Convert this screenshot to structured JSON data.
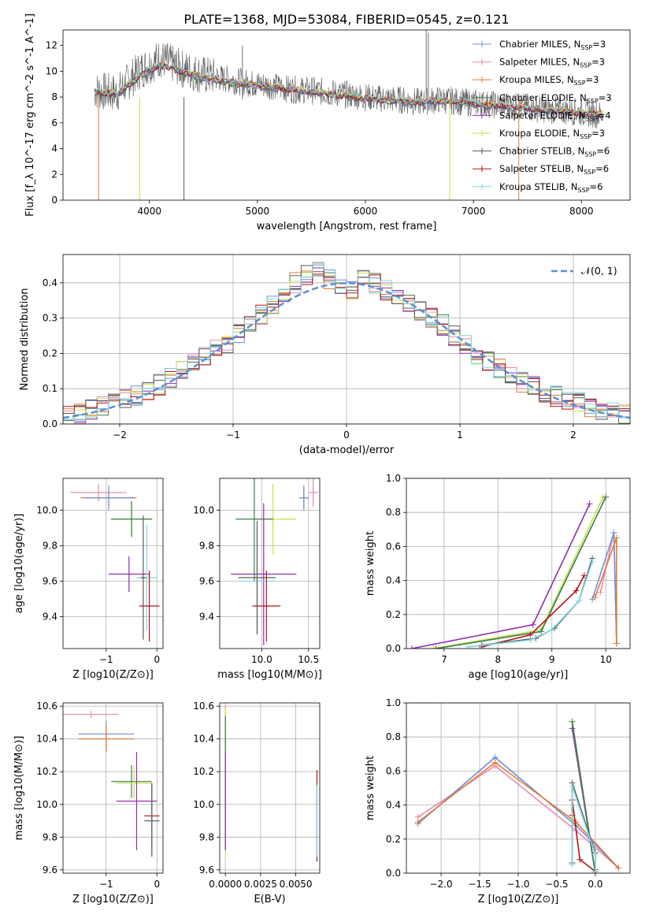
{
  "figure_title": "PLATE=1368, MJD=53084, FIBERID=0545, z=0.121",
  "colors": {
    "Chabrier MILES": "#6f8fd8",
    "Salpeter MILES": "#e88ab6",
    "Kroupa MILES": "#e07b32",
    "Chabrier ELODIE": "#3d7a4f",
    "Salpeter ELODIE": "#8e2fae",
    "Kroupa ELODIE": "#c8e04a",
    "Chabrier STELIB": "#5a5a5a",
    "Salpeter STELIB": "#b31217",
    "Kroupa STELIB": "#7fd8e0"
  },
  "chart_data": [
    {
      "id": "spectrum",
      "type": "line",
      "title": "PLATE=1368, MJD=53084, FIBERID=0545, z=0.121",
      "xlabel": "wavelength [Angstrom, rest frame]",
      "ylabel": "Flux [f_λ 10^-17 erg cm^-2 s^-1 A^-1]",
      "xlim": [
        3200,
        8450
      ],
      "ylim": [
        0,
        13.2
      ],
      "xticks": [
        4000,
        5000,
        6000,
        7000,
        8000
      ],
      "yticks": [
        0,
        2,
        4,
        6,
        8,
        10,
        12
      ],
      "grid": false,
      "legend_position": "right",
      "series": [
        {
          "name": "Chabrier MILES",
          "nssp": "3"
        },
        {
          "name": "Salpeter MILES",
          "nssp": "3"
        },
        {
          "name": "Kroupa MILES",
          "nssp": "3"
        },
        {
          "name": "Chabrier ELODIE",
          "nssp": "3"
        },
        {
          "name": "Salpeter ELODIE",
          "nssp": "4"
        },
        {
          "name": "Kroupa ELODIE",
          "nssp": "3"
        },
        {
          "name": "Chabrier STELIB",
          "nssp": "6"
        },
        {
          "name": "Salpeter STELIB",
          "nssp": "6"
        },
        {
          "name": "Kroupa STELIB",
          "nssp": "6"
        }
      ],
      "data_x": [
        3500,
        3700,
        3900,
        4100,
        4300,
        4500,
        4700,
        4900,
        5100,
        5300,
        5500,
        5700,
        5900,
        6100,
        6300,
        6500,
        6700,
        6900,
        7100,
        7300,
        7500,
        7700,
        7900,
        8100,
        8200
      ],
      "data_y": [
        8.5,
        8.3,
        10.0,
        11.0,
        10.2,
        9.7,
        9.4,
        9.1,
        8.9,
        8.6,
        8.5,
        8.3,
        8.1,
        7.9,
        7.8,
        7.6,
        7.8,
        7.6,
        7.5,
        7.3,
        7.2,
        7.0,
        6.9,
        6.7,
        6.6
      ],
      "model_y": [
        8.4,
        8.2,
        9.6,
        10.5,
        10.0,
        9.5,
        9.2,
        9.0,
        8.8,
        8.6,
        8.4,
        8.2,
        8.0,
        7.8,
        7.7,
        7.6,
        7.7,
        7.6,
        7.4,
        7.3,
        7.1,
        7.0,
        6.8,
        6.7,
        6.6
      ]
    },
    {
      "id": "residuals",
      "type": "line",
      "xlabel": "(data-model)/error",
      "ylabel": "Normed distribution",
      "xlim": [
        -2.5,
        2.5
      ],
      "ylim": [
        0,
        0.48
      ],
      "xticks": [
        -2,
        -1,
        0,
        1,
        2
      ],
      "yticks": [
        0.0,
        0.1,
        0.2,
        0.3,
        0.4
      ],
      "grid": true,
      "legend_position": "top-right",
      "legend_label": "𝒩(0, 1)",
      "hist_bins": [
        -2.5,
        -2.4,
        -2.3,
        -2.2,
        -2.1,
        -2.0,
        -1.9,
        -1.8,
        -1.7,
        -1.6,
        -1.5,
        -1.4,
        -1.3,
        -1.2,
        -1.1,
        -1.0,
        -0.9,
        -0.8,
        -0.7,
        -0.6,
        -0.5,
        -0.4,
        -0.3,
        -0.2,
        -0.1,
        0.0,
        0.1,
        0.2,
        0.3,
        0.4,
        0.5,
        0.6,
        0.7,
        0.8,
        0.9,
        1.0,
        1.1,
        1.2,
        1.3,
        1.4,
        1.5,
        1.6,
        1.7,
        1.8,
        1.9,
        2.0,
        2.1,
        2.2,
        2.3,
        2.4
      ],
      "hist_values": [
        0.02,
        0.03,
        0.04,
        0.05,
        0.06,
        0.07,
        0.08,
        0.09,
        0.11,
        0.13,
        0.15,
        0.17,
        0.19,
        0.21,
        0.23,
        0.26,
        0.28,
        0.31,
        0.34,
        0.37,
        0.4,
        0.42,
        0.43,
        0.41,
        0.39,
        0.38,
        0.41,
        0.4,
        0.38,
        0.36,
        0.34,
        0.32,
        0.3,
        0.28,
        0.25,
        0.23,
        0.2,
        0.18,
        0.16,
        0.14,
        0.12,
        0.11,
        0.09,
        0.08,
        0.07,
        0.06,
        0.05,
        0.04,
        0.035,
        0.03
      ]
    },
    {
      "id": "age_vs_Z",
      "type": "scatter",
      "xlabel": "Z [log10(Z/Z⊙)]",
      "ylabel": "age [log10(age/yr)]",
      "xlim": [
        -1.85,
        0.12
      ],
      "ylim": [
        9.22,
        10.18
      ],
      "xticks": [
        -1,
        0
      ],
      "yticks": [
        9.4,
        9.6,
        9.8,
        10.0
      ],
      "grid": true,
      "points": [
        {
          "series": "Salpeter MILES",
          "x": -1.15,
          "y": 10.1,
          "xerr": 0.55,
          "yerr": 0.05
        },
        {
          "series": "Kroupa MILES",
          "x": -0.95,
          "y": 10.07,
          "xerr": 0.55,
          "yerr": 0.05
        },
        {
          "series": "Chabrier MILES",
          "x": -0.95,
          "y": 10.07,
          "xerr": 0.5,
          "yerr": 0.07
        },
        {
          "series": "Kroupa ELODIE",
          "x": -0.5,
          "y": 9.95,
          "xerr": 0.42,
          "yerr": 0.1
        },
        {
          "series": "Chabrier ELODIE",
          "x": -0.5,
          "y": 9.95,
          "xerr": 0.4,
          "yerr": 0.1
        },
        {
          "series": "Salpeter ELODIE",
          "x": -0.55,
          "y": 9.64,
          "xerr": 0.4,
          "yerr": 0.1
        },
        {
          "series": "Kroupa STELIB",
          "x": -0.2,
          "y": 9.62,
          "xerr": 0.2,
          "yerr": 0.3
        },
        {
          "series": "Chabrier STELIB",
          "x": -0.27,
          "y": 9.62,
          "xerr": 0.05,
          "yerr": 0.35
        },
        {
          "series": "Salpeter STELIB",
          "x": -0.15,
          "y": 9.46,
          "xerr": 0.2,
          "yerr": 0.2
        }
      ]
    },
    {
      "id": "age_vs_mass",
      "type": "scatter",
      "xlabel": "mass [log10(M/M⊙)]",
      "ylabel": "",
      "xlim": [
        9.55,
        10.62
      ],
      "ylim": [
        9.22,
        10.18
      ],
      "xticks": [
        10.0,
        10.5
      ],
      "yticks": [
        9.4,
        9.6,
        9.8,
        10.0
      ],
      "grid": true,
      "points": [
        {
          "series": "Salpeter MILES",
          "x": 10.55,
          "y": 10.1,
          "xerr": 0.05,
          "yerr": 0.08
        },
        {
          "series": "Kroupa MILES",
          "x": 10.45,
          "y": 10.07,
          "xerr": 0.05,
          "yerr": 0.05
        },
        {
          "series": "Chabrier MILES",
          "x": 10.45,
          "y": 10.07,
          "xerr": 0.05,
          "yerr": 0.07
        },
        {
          "series": "Kroupa ELODIE",
          "x": 10.12,
          "y": 9.95,
          "xerr": 0.25,
          "yerr": 0.2
        },
        {
          "series": "Chabrier ELODIE",
          "x": 9.92,
          "y": 9.95,
          "xerr": 0.2,
          "yerr": 0.35
        },
        {
          "series": "Salpeter ELODIE",
          "x": 10.02,
          "y": 9.64,
          "xerr": 0.35,
          "yerr": 0.4
        },
        {
          "series": "Kroupa STELIB",
          "x": 9.95,
          "y": 9.6,
          "xerr": 0.2,
          "yerr": 0.3
        },
        {
          "series": "Chabrier STELIB",
          "x": 9.95,
          "y": 9.62,
          "xerr": 0.2,
          "yerr": 0.32
        },
        {
          "series": "Salpeter STELIB",
          "x": 10.05,
          "y": 9.46,
          "xerr": 0.15,
          "yerr": 0.2
        }
      ]
    },
    {
      "id": "weight_vs_age",
      "type": "line",
      "xlabel": "age [log10(age/yr)]",
      "ylabel": "mass weight",
      "xlim": [
        6.3,
        10.45
      ],
      "ylim": [
        0.0,
        1.0
      ],
      "xticks": [
        7,
        8,
        9,
        10
      ],
      "yticks": [
        0.0,
        0.2,
        0.4,
        0.6,
        0.8,
        1.0
      ],
      "grid": true,
      "series": [
        {
          "name": "Salpeter ELODIE",
          "x": [
            6.4,
            8.65,
            9.7
          ],
          "y": [
            0.0,
            0.14,
            0.85
          ]
        },
        {
          "name": "Kroupa ELODIE",
          "x": [
            6.8,
            8.8,
            9.95
          ],
          "y": [
            0.0,
            0.11,
            0.89
          ]
        },
        {
          "name": "Chabrier ELODIE",
          "x": [
            6.85,
            8.8,
            10.0
          ],
          "y": [
            0.0,
            0.1,
            0.89
          ]
        },
        {
          "name": "Salpeter STELIB",
          "x": [
            7.7,
            8.6,
            9.45,
            9.6
          ],
          "y": [
            0.01,
            0.08,
            0.34,
            0.43
          ]
        },
        {
          "name": "Chabrier STELIB",
          "x": [
            7.7,
            8.7,
            9.05,
            9.5,
            9.75
          ],
          "y": [
            0.02,
            0.06,
            0.12,
            0.28,
            0.53
          ]
        },
        {
          "name": "Kroupa STELIB",
          "x": [
            7.45,
            8.6,
            9.0,
            9.5,
            9.75
          ],
          "y": [
            0.01,
            0.05,
            0.11,
            0.28,
            0.51
          ]
        },
        {
          "name": "Salpeter MILES",
          "x": [
            9.9,
            10.15,
            10.2
          ],
          "y": [
            0.33,
            0.68,
            0.03
          ]
        },
        {
          "name": "Chabrier MILES",
          "x": [
            9.75,
            10.15,
            10.2
          ],
          "y": [
            0.29,
            0.68,
            0.03
          ]
        },
        {
          "name": "Kroupa MILES",
          "x": [
            9.8,
            10.2,
            10.2
          ],
          "y": [
            0.3,
            0.65,
            0.03
          ]
        }
      ]
    },
    {
      "id": "mass_vs_Z",
      "type": "scatter",
      "xlabel": "Z [log10(Z/Z⊙)]",
      "ylabel": "mass [log10(M/M⊙)]",
      "xlim": [
        -1.85,
        0.12
      ],
      "ylim": [
        9.58,
        10.62
      ],
      "xticks": [
        -1,
        0
      ],
      "yticks": [
        9.6,
        9.8,
        10.0,
        10.2,
        10.4,
        10.6
      ],
      "grid": true,
      "points": [
        {
          "series": "Salpeter MILES",
          "x": -1.3,
          "y": 10.55,
          "xerr": 0.55,
          "yerr": 0.02
        },
        {
          "series": "Chabrier MILES",
          "x": -1.0,
          "y": 10.43,
          "xerr": 0.55,
          "yerr": 0.08
        },
        {
          "series": "Kroupa MILES",
          "x": -1.0,
          "y": 10.4,
          "xerr": 0.55,
          "yerr": 0.08
        },
        {
          "series": "Chabrier ELODIE",
          "x": -0.5,
          "y": 10.14,
          "xerr": 0.4,
          "yerr": 0.1
        },
        {
          "series": "Kroupa ELODIE",
          "x": -0.45,
          "y": 10.13,
          "xerr": 0.35,
          "yerr": 0.1
        },
        {
          "series": "Salpeter ELODIE",
          "x": -0.4,
          "y": 10.02,
          "xerr": 0.4,
          "yerr": 0.3
        },
        {
          "series": "Salpeter STELIB",
          "x": -0.1,
          "y": 9.93,
          "xerr": 0.15,
          "yerr": 0.2
        },
        {
          "series": "Kroupa STELIB",
          "x": -0.1,
          "y": 9.9,
          "xerr": 0.15,
          "yerr": 0.2
        },
        {
          "series": "Chabrier STELIB",
          "x": -0.1,
          "y": 9.9,
          "xerr": 0.15,
          "yerr": 0.22
        }
      ]
    },
    {
      "id": "mass_vs_ebv",
      "type": "scatter",
      "xlabel": "E(B-V)",
      "ylabel": "",
      "xlim": [
        -0.0004,
        0.0067
      ],
      "ylim": [
        9.58,
        10.62
      ],
      "xticks": [
        0.0,
        0.0025,
        0.005
      ],
      "xtick_labels": [
        "0.0000",
        "0.0025",
        "0.0050"
      ],
      "yticks": [
        9.6,
        9.8,
        10.0,
        10.2,
        10.4,
        10.6
      ],
      "grid": true,
      "points": [
        {
          "series": "Salpeter MILES",
          "x": 0.0,
          "y": 10.55,
          "xerr": 0.0,
          "yerr": 0.05
        },
        {
          "series": "Kroupa MILES",
          "x": 0.0,
          "y": 10.4,
          "xerr": 0.0,
          "yerr": 0.08
        },
        {
          "series": "Chabrier MILES",
          "x": 0.0,
          "y": 10.43,
          "xerr": 0.0,
          "yerr": 0.1
        },
        {
          "series": "Kroupa ELODIE",
          "x": 0.0,
          "y": 10.13,
          "xerr": 0.0,
          "yerr": 0.45
        },
        {
          "series": "Chabrier ELODIE",
          "x": 0.0,
          "y": 10.14,
          "xerr": 0.0,
          "yerr": 0.4
        },
        {
          "series": "Salpeter ELODIE",
          "x": 0.0,
          "y": 10.02,
          "xerr": 0.0,
          "yerr": 0.3
        },
        {
          "series": "Salpeter STELIB",
          "x": 0.0065,
          "y": 9.93,
          "xerr": 0.0,
          "yerr": 0.28
        },
        {
          "series": "Chabrier STELIB",
          "x": 0.0065,
          "y": 9.9,
          "xerr": 0.0,
          "yerr": 0.22
        },
        {
          "series": "Kroupa STELIB",
          "x": 0.0065,
          "y": 9.9,
          "xerr": 0.0,
          "yerr": 0.22
        }
      ]
    },
    {
      "id": "weight_vs_Z",
      "type": "line",
      "xlabel": "Z [log10(Z/Z⊙)]",
      "ylabel": "mass weight",
      "xlim": [
        -2.45,
        0.45
      ],
      "ylim": [
        0.0,
        1.0
      ],
      "xticks": [
        -2.0,
        -1.5,
        -1.0,
        -0.5,
        0.0
      ],
      "xtick_labels": [
        "−2.0",
        "−1.5",
        "−1.0",
        "−0.5",
        "0.0"
      ],
      "yticks": [
        0.0,
        0.2,
        0.4,
        0.6,
        0.8,
        1.0
      ],
      "grid": true,
      "series": [
        {
          "name": "Salpeter MILES",
          "x": [
            -2.3,
            -1.3,
            -0.25,
            0.3
          ],
          "y": [
            0.33,
            0.63,
            0.25,
            0.03
          ]
        },
        {
          "name": "Chabrier MILES",
          "x": [
            -2.3,
            -1.3,
            -0.25,
            0.3
          ],
          "y": [
            0.29,
            0.68,
            0.28,
            0.03
          ]
        },
        {
          "name": "Kroupa MILES",
          "x": [
            -2.3,
            -1.3,
            -0.25,
            0.3
          ],
          "y": [
            0.3,
            0.65,
            0.3,
            0.03
          ]
        },
        {
          "name": "Salpeter ELODIE",
          "x": [
            -0.3,
            0.0
          ],
          "y": [
            0.85,
            0.0
          ]
        },
        {
          "name": "Kroupa ELODIE",
          "x": [
            -0.3,
            0.0
          ],
          "y": [
            0.89,
            0.0
          ]
        },
        {
          "name": "Chabrier ELODIE",
          "x": [
            -0.3,
            0.0
          ],
          "y": [
            0.89,
            0.0
          ]
        },
        {
          "name": "Salpeter STELIB",
          "x": [
            -0.3,
            -0.3,
            -0.2,
            0.0
          ],
          "y": [
            0.34,
            0.43,
            0.08,
            0.01
          ]
        },
        {
          "name": "Chabrier STELIB",
          "x": [
            -0.3,
            -0.3,
            0.0,
            0.0
          ],
          "y": [
            0.06,
            0.53,
            0.12,
            0.02
          ]
        },
        {
          "name": "Kroupa STELIB",
          "x": [
            -0.3,
            -0.3,
            0.0,
            0.0
          ],
          "y": [
            0.05,
            0.51,
            0.11,
            0.01
          ]
        }
      ]
    }
  ]
}
